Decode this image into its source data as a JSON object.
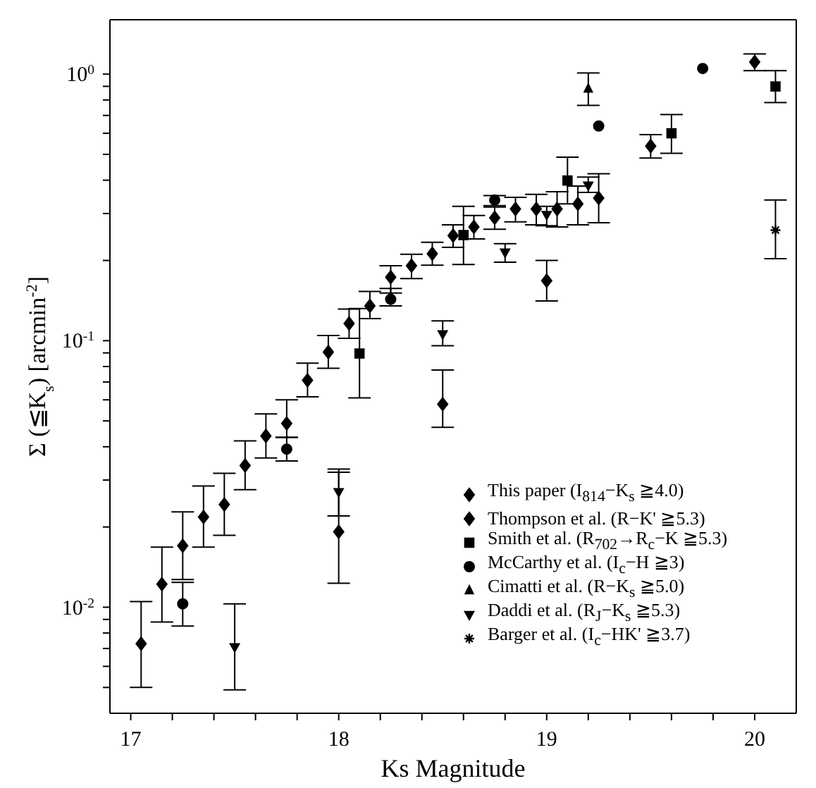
{
  "chart_data": {
    "type": "scatter",
    "xlabel": "Ks Magnitude",
    "ylabel": "Σ (≦K$_{s}$) [arcmin$^{-2}$]",
    "log": "y",
    "xlim": [
      16.9,
      20.2
    ],
    "xticks": [
      17,
      {
        "value": 17.2,
        "label": null
      },
      {
        "value": 17.4,
        "label": null
      },
      {
        "value": 17.6,
        "label": null
      },
      {
        "value": 17.8,
        "label": null
      },
      18,
      {
        "value": 18.2,
        "label": null
      },
      {
        "value": 18.4,
        "label": null
      },
      {
        "value": 18.6,
        "label": null
      },
      {
        "value": 18.8,
        "label": null
      },
      19,
      {
        "value": 19.2,
        "label": null
      },
      {
        "value": 19.4,
        "label": null
      },
      {
        "value": 19.6,
        "label": null
      },
      {
        "value": 19.8,
        "label": null
      },
      20
    ],
    "ylim": [
      0.004,
      1.6
    ],
    "yticks": [
      {
        "value": 0.005,
        "label": null
      },
      {
        "value": 0.006,
        "label": null
      },
      {
        "value": 0.007,
        "label": null
      },
      {
        "value": 0.008,
        "label": null
      },
      {
        "value": 0.009,
        "label": null
      },
      {
        "value": 0.01,
        "label": "10$^{-2}$"
      },
      {
        "value": 0.02,
        "label": null
      },
      {
        "value": 0.03,
        "label": null
      },
      {
        "value": 0.04,
        "label": null
      },
      {
        "value": 0.05,
        "label": null
      },
      {
        "value": 0.06,
        "label": null
      },
      {
        "value": 0.07,
        "label": null
      },
      {
        "value": 0.08,
        "label": null
      },
      {
        "value": 0.09,
        "label": null
      },
      {
        "value": 0.1,
        "label": "10$^{-1}$"
      },
      {
        "value": 0.2,
        "label": null
      },
      {
        "value": 0.3,
        "label": null
      },
      {
        "value": 0.4,
        "label": null
      },
      {
        "value": 0.5,
        "label": null
      },
      {
        "value": 0.6,
        "label": null
      },
      {
        "value": 0.7,
        "label": null
      },
      {
        "value": 0.8,
        "label": null
      },
      {
        "value": 0.9,
        "label": null
      },
      {
        "value": 1,
        "label": "10$^{0}$"
      }
    ],
    "grid": false,
    "legend": "bottom right",
    "series": [
      {
        "name": "This paper (I$_{814}$−K$_{s}$ ≧4.0)",
        "color": "#000000",
        "marker": "diamond",
        "x": [
          17.05,
          17.15,
          17.25,
          17.35,
          17.45,
          17.55,
          17.65,
          17.75,
          17.85,
          17.95,
          18.05,
          18.15,
          18.25,
          18.35,
          18.45,
          18.55,
          18.65,
          18.75,
          18.85,
          18.95,
          19.05,
          19.15,
          19.25
        ],
        "values": [
          0.0073,
          0.0122,
          0.017,
          0.0218,
          0.0243,
          0.034,
          0.0439,
          0.0489,
          0.071,
          0.0906,
          0.116,
          0.135,
          0.173,
          0.191,
          0.212,
          0.248,
          0.267,
          0.289,
          0.312,
          0.312,
          0.312,
          0.326,
          0.343
        ],
        "errors": [
          [
            0.005,
            0.0105
          ],
          [
            0.0088,
            0.0168
          ],
          [
            0.0127,
            0.0228
          ],
          [
            0.0168,
            0.0285
          ],
          [
            0.0186,
            0.0318
          ],
          [
            0.0276,
            0.0421
          ],
          [
            0.0363,
            0.0531
          ],
          [
            0.0434,
            0.06
          ],
          [
            0.0616,
            0.0824
          ],
          [
            0.0788,
            0.1045
          ],
          [
            0.102,
            0.1315
          ],
          [
            0.121,
            0.153
          ],
          [
            0.151,
            0.191
          ],
          [
            0.171,
            0.211
          ],
          [
            0.192,
            0.234
          ],
          [
            0.224,
            0.272
          ],
          [
            0.241,
            0.295
          ],
          [
            0.262,
            0.317
          ],
          [
            0.279,
            0.345
          ],
          [
            0.272,
            0.354
          ],
          [
            0.267,
            0.362
          ],
          [
            0.272,
            0.38
          ],
          [
            0.277,
            0.423
          ]
        ]
      },
      {
        "name": "Thompson et al. (R−K' ≧5.3)",
        "color": "#000000",
        "marker": "diamond",
        "x": [
          18.0,
          18.5,
          19.0,
          19.5,
          20.0
        ],
        "values": [
          0.0192,
          0.0578,
          0.168,
          0.537,
          1.11
        ],
        "errors": [
          [
            0.0123,
            0.033
          ],
          [
            0.0473,
            0.0776
          ],
          [
            0.141,
            0.2
          ],
          [
            0.484,
            0.593
          ],
          [
            1.03,
            1.19
          ]
        ]
      },
      {
        "name": "Smith et al. (R$_{702}$→R$_{c}$−K ≧5.3)",
        "color": "#000000",
        "marker": "square",
        "x": [
          18.1,
          18.6,
          19.1,
          19.6,
          20.1
        ],
        "values": [
          0.0895,
          0.249,
          0.399,
          0.6,
          0.899
        ],
        "errors": [
          [
            0.061,
            0.132
          ],
          [
            0.193,
            0.319
          ],
          [
            0.326,
            0.488
          ],
          [
            0.505,
            0.705
          ],
          [
            0.782,
            1.03
          ]
        ]
      },
      {
        "name": "McCarthy et al. (I$_{c}$−H ≧3)",
        "color": "#000000",
        "marker": "circle",
        "x": [
          17.25,
          17.75,
          18.25,
          18.75,
          19.25,
          19.75
        ],
        "values": [
          0.0103,
          0.0392,
          0.143,
          0.337,
          0.639,
          1.05
        ],
        "errors": [
          [
            0.0085,
            0.0124
          ],
          [
            0.0354,
            0.0434
          ],
          [
            0.135,
            0.157
          ],
          [
            0.321,
            0.35
          ],
          null,
          null
        ]
      },
      {
        "name": "Cimatti et al. (R−K$_{s}$ ≧5.0)",
        "color": "#000000",
        "marker": "triangle",
        "x": [
          19.2
        ],
        "values": [
          0.88
        ],
        "errors": [
          [
            0.763,
            1.01
          ]
        ]
      },
      {
        "name": "Daddi et al. (R$_{J}$−K$_{s}$ ≧5.3)",
        "color": "#000000",
        "marker": "triangle-down",
        "x": [
          17.5,
          18.0,
          18.5,
          18.8,
          19.0,
          19.2
        ],
        "values": [
          0.0071,
          0.0271,
          0.106,
          0.215,
          0.297,
          0.383
        ],
        "errors": [
          [
            0.0049,
            0.0103
          ],
          [
            0.022,
            0.0321
          ],
          [
            0.0957,
            0.1186
          ],
          [
            0.197,
            0.231
          ],
          [
            0.27,
            0.319
          ],
          [
            0.36,
            0.411
          ]
        ]
      },
      {
        "name": "Barger et al. (I$_{c}$−HK' ≧3.7)",
        "color": "#000000",
        "marker": "cross",
        "x": [
          20.1
        ],
        "values": [
          0.26
        ],
        "errors": [
          [
            0.203,
            0.337
          ]
        ]
      }
    ]
  }
}
